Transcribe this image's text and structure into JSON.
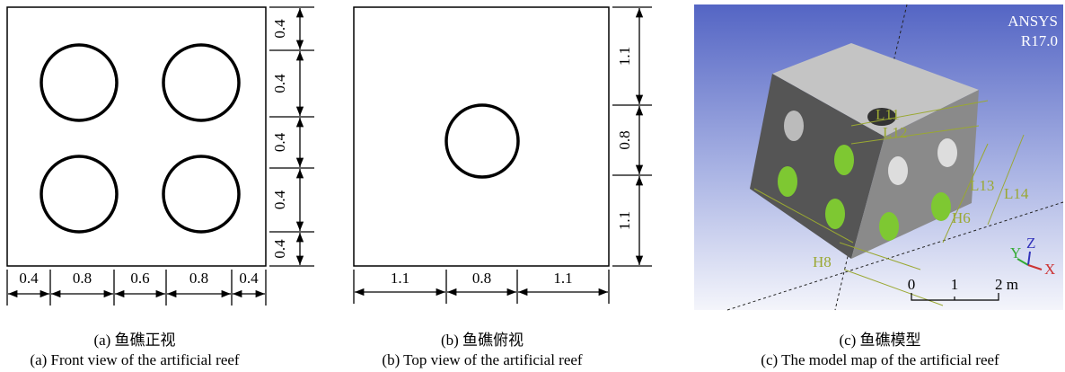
{
  "panels": [
    {
      "caption_cn": "(a) 鱼礁正视",
      "caption_en": "(a) Front view of the artificial reef",
      "horizontal_dims": [
        "0.4",
        "0.8",
        "0.6",
        "0.8",
        "0.4"
      ],
      "vertical_dims": [
        "0.4",
        "0.4",
        "0.4",
        "0.4",
        "0.4"
      ]
    },
    {
      "caption_cn": "(b) 鱼礁俯视",
      "caption_en": "(b) Top view of the artificial reef",
      "horizontal_dims": [
        "1.1",
        "0.8",
        "1.1"
      ],
      "vertical_dims": [
        "1.1",
        "0.8",
        "1.1"
      ]
    },
    {
      "caption_cn": "(c) 鱼礁模型",
      "caption_en": "(c) The model map of the artificial reef",
      "brand": [
        "ANSYS",
        "R17.0"
      ],
      "labels": [
        "L11",
        "L12",
        "L13",
        "L14",
        "H6",
        "H8"
      ],
      "axes": [
        "Y",
        "Z",
        "X"
      ],
      "scale": [
        "0",
        "1",
        "2 m"
      ]
    }
  ]
}
